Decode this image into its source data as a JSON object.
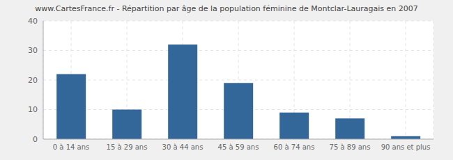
{
  "chart_data": {
    "type": "bar",
    "title": "www.CartesFrance.fr - Répartition par âge de la population féminine de Montclar-Lauragais en 2007",
    "categories": [
      "0 à 14 ans",
      "15 à 29 ans",
      "30 à 44 ans",
      "45 à 59 ans",
      "60 à 74 ans",
      "75 à 89 ans",
      "90 ans et plus"
    ],
    "values": [
      22,
      10,
      32,
      19,
      9,
      7,
      1
    ],
    "color": "#336699",
    "ylim": [
      0,
      40
    ],
    "yticks": [
      0,
      10,
      20,
      30,
      40
    ],
    "grid": true
  }
}
